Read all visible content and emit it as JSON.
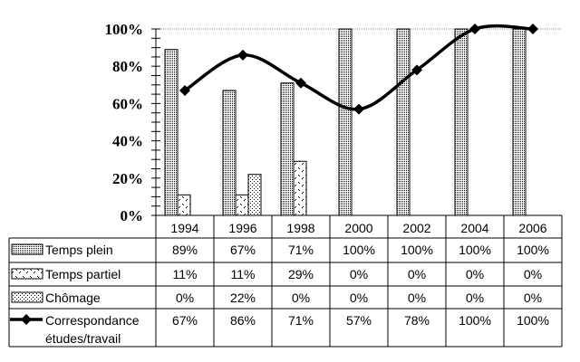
{
  "chart_data": {
    "type": "bar",
    "categories": [
      "1994",
      "1996",
      "1998",
      "2000",
      "2002",
      "2004",
      "2006"
    ],
    "ylim": [
      0,
      100
    ],
    "y_ticks": [
      "0%",
      "20%",
      "40%",
      "60%",
      "80%",
      "100%"
    ],
    "series": [
      {
        "name": "Temps plein",
        "kind": "bar",
        "pattern": "dense-dots",
        "values": [
          89,
          67,
          71,
          100,
          100,
          100,
          100
        ],
        "labels": [
          "89%",
          "67%",
          "71%",
          "100%",
          "100%",
          "100%",
          "100%"
        ]
      },
      {
        "name": "Temps partiel",
        "kind": "bar",
        "pattern": "sparse-crosses",
        "values": [
          11,
          11,
          29,
          0,
          0,
          0,
          0
        ],
        "labels": [
          "11%",
          "11%",
          "29%",
          "0%",
          "0%",
          "0%",
          "0%"
        ]
      },
      {
        "name": "Chômage",
        "kind": "bar",
        "pattern": "medium-dots",
        "values": [
          0,
          22,
          0,
          0,
          0,
          0,
          0
        ],
        "labels": [
          "0%",
          "22%",
          "0%",
          "0%",
          "0%",
          "0%",
          "0%"
        ]
      },
      {
        "name": "Correspondance études/travail",
        "name_lines": [
          "Correspondance",
          "études/travail"
        ],
        "kind": "line",
        "marker": "diamond",
        "values": [
          67,
          86,
          71,
          57,
          78,
          100,
          100
        ],
        "labels": [
          "67%",
          "86%",
          "71%",
          "57%",
          "78%",
          "100%",
          "100%"
        ]
      }
    ],
    "legend": "data-table-below",
    "grid": false
  }
}
